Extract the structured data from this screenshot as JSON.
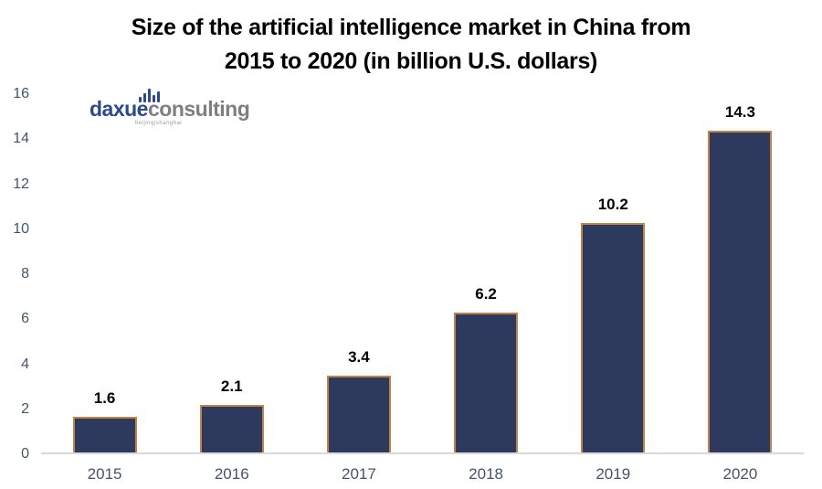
{
  "title": {
    "line1": "Size of the artificial intelligence market in China from",
    "line2": "2015 to 2020 (in billion U.S. dollars)"
  },
  "logo": {
    "brand_primary": "daxue",
    "brand_secondary": "consulting",
    "tagline": "beijing|shanghai",
    "icon": "bar-chart-icon"
  },
  "colors": {
    "bar_fill": "#2d3a5d",
    "bar_border": "#c08449",
    "axis_label": "#44546a",
    "data_label": "#000000",
    "baseline": "#d9d9d9",
    "logo_blue": "#2a4a8c",
    "logo_gray": "#7f7f7f",
    "background": "#ffffff"
  },
  "chart_data": {
    "type": "bar",
    "title": "Size of the artificial intelligence market in China from 2015 to 2020 (in billion U.S. dollars)",
    "categories": [
      "2015",
      "2016",
      "2017",
      "2018",
      "2019",
      "2020"
    ],
    "values": [
      1.6,
      2.1,
      3.4,
      6.2,
      10.2,
      14.3
    ],
    "data_labels": [
      "1.6",
      "2.1",
      "3.4",
      "6.2",
      "10.2",
      "14.3"
    ],
    "xlabel": "",
    "ylabel": "",
    "ylim": [
      0,
      16
    ],
    "y_ticks": [
      0,
      2,
      4,
      6,
      8,
      10,
      12,
      14,
      16
    ],
    "grid": false,
    "legend": false
  }
}
